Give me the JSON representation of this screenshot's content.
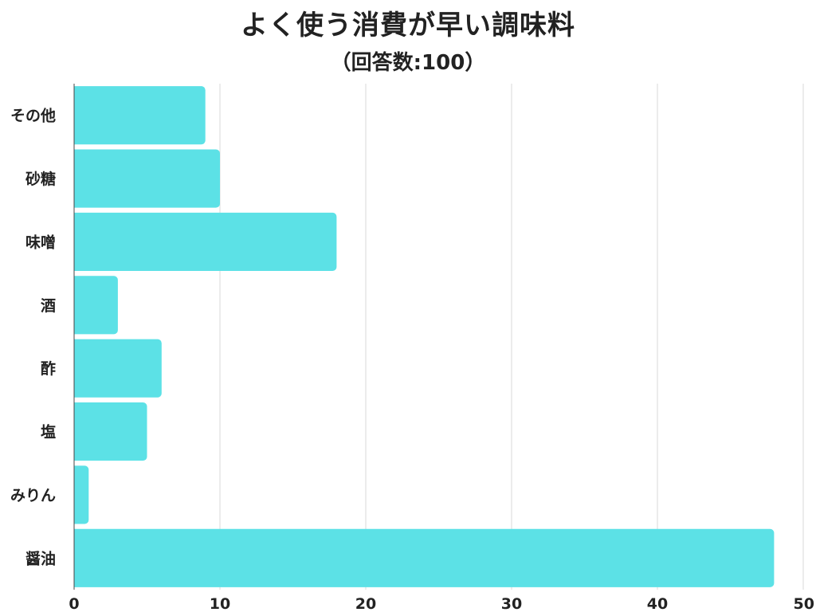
{
  "chart_data": {
    "type": "bar",
    "orientation": "horizontal",
    "title": "よく使う消費が早い調味料",
    "subtitle": "（回答数:100）",
    "categories": [
      "その他",
      "砂糖",
      "味噌",
      "酒",
      "酢",
      "塩",
      "みりん",
      "醤油"
    ],
    "values": [
      9,
      10,
      18,
      3,
      6,
      5,
      1,
      48
    ],
    "xlim": [
      0,
      50
    ],
    "xticks": [
      0,
      10,
      20,
      30,
      40,
      50
    ],
    "xlabel": "",
    "ylabel": "",
    "grid": "vertical",
    "bar_color": "#5ce1e6",
    "grid_color": "#d9d9d9",
    "axis_color": "#444444"
  }
}
